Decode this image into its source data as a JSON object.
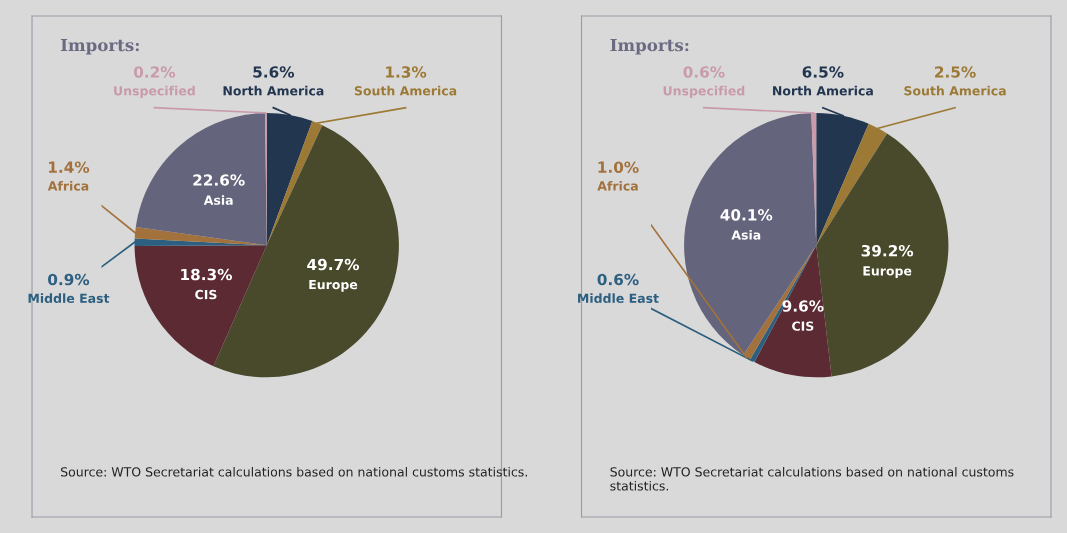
{
  "chart_data": [
    {
      "type": "pie",
      "title": "Imports:",
      "categories": [
        "North America",
        "South America",
        "Europe",
        "CIS",
        "Middle East",
        "Africa",
        "Asia",
        "Unspecified"
      ],
      "values": [
        5.6,
        1.3,
        49.7,
        18.3,
        0.9,
        1.4,
        22.6,
        0.2
      ],
      "value_labels": [
        "5.6%",
        "1.3%",
        "49.7%",
        "18.3%",
        "0.9%",
        "1.4%",
        "22.6%",
        "0.2%"
      ],
      "colors": [
        "#223650",
        "#9c7a36",
        "#494a2c",
        "#5b2a32",
        "#2d5f80",
        "#a2713c",
        "#64647c",
        "#c99aaa"
      ],
      "annotations": [
        "Source: WTO Secretariat calculations based on national customs statistics."
      ]
    },
    {
      "type": "pie",
      "title": "Imports:",
      "categories": [
        "North America",
        "South America",
        "Europe",
        "CIS",
        "Middle East",
        "Africa",
        "Asia",
        "Unspecified"
      ],
      "values": [
        6.5,
        2.5,
        39.2,
        9.6,
        0.6,
        1.0,
        40.1,
        0.6
      ],
      "value_labels": [
        "6.5%",
        "2.5%",
        "39.2%",
        "9.6%",
        "0.6%",
        "1.0%",
        "40.1%",
        "0.6%"
      ],
      "colors": [
        "#223650",
        "#9c7a36",
        "#494a2c",
        "#5b2a32",
        "#2d5f80",
        "#a2713c",
        "#64647c",
        "#c99aaa"
      ],
      "annotations": [
        "Source: WTO Secretariat calculations based on national customs statistics."
      ]
    }
  ]
}
